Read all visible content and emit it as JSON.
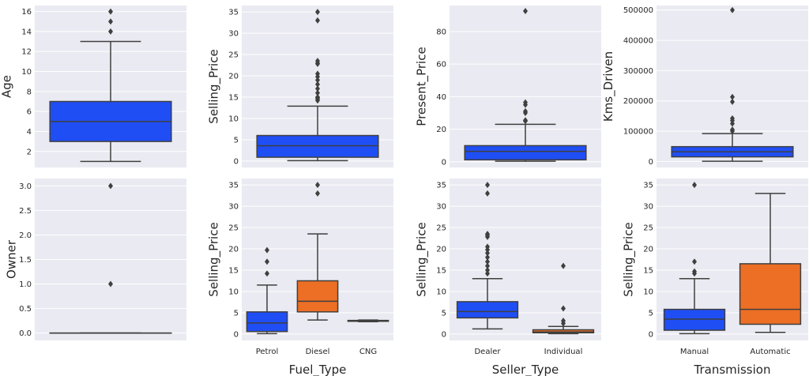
{
  "colors": {
    "panel_bg": "#eaeaf2",
    "grid": "#ffffff",
    "line": "#3f3f3f",
    "blue": "#1f4ef5",
    "orange": "#ec6f25"
  },
  "chart_data": [
    {
      "type": "box",
      "ylabel": "Age",
      "xlabel": "",
      "categories": [],
      "yticks": [
        2,
        4,
        6,
        8,
        10,
        12,
        14,
        16
      ],
      "ylim": [
        0.4,
        16.6
      ],
      "boxes": [
        {
          "color": "blue",
          "whislo": 1,
          "q1": 3,
          "med": 5,
          "q3": 7,
          "whishi": 13,
          "fliers": [
            14,
            15,
            16
          ]
        }
      ]
    },
    {
      "type": "box",
      "ylabel": "Selling_Price",
      "xlabel": "",
      "categories": [],
      "yticks": [
        0,
        5,
        10,
        15,
        20,
        25,
        30,
        35
      ],
      "ylim": [
        -1.5,
        36.5
      ],
      "boxes": [
        {
          "color": "blue",
          "whislo": 0.1,
          "q1": 0.9,
          "med": 3.6,
          "q3": 6.0,
          "whishi": 12.9,
          "fliers": [
            14.2,
            14.6,
            14.9,
            15.0,
            16.0,
            17.0,
            18.0,
            19.0,
            19.8,
            20.5,
            22.8,
            23.0,
            23.5,
            33.0,
            35.0
          ]
        }
      ]
    },
    {
      "type": "box",
      "ylabel": "Present_Price",
      "xlabel": "",
      "categories": [],
      "yticks": [
        0,
        20,
        40,
        60,
        80
      ],
      "ylim": [
        -3.5,
        96
      ],
      "boxes": [
        {
          "color": "blue",
          "whislo": 0.3,
          "q1": 1.2,
          "med": 6.4,
          "q3": 9.9,
          "whishi": 23,
          "fliers": [
            25,
            25.5,
            30,
            31,
            35,
            36.5,
            92.6
          ]
        }
      ]
    },
    {
      "type": "box",
      "ylabel": "Kms_Driven",
      "xlabel": "",
      "categories": [],
      "yticks": [
        0,
        100000,
        200000,
        300000,
        400000,
        500000
      ],
      "ylim": [
        -20000,
        515000
      ],
      "boxes": [
        {
          "color": "blue",
          "whislo": 500,
          "q1": 15000,
          "med": 32000,
          "q3": 48700,
          "whishi": 92000,
          "fliers": [
            100000,
            105000,
            125000,
            135000,
            142000,
            197000,
            213000,
            500000
          ]
        }
      ]
    },
    {
      "type": "box",
      "ylabel": "Owner",
      "xlabel": "",
      "categories": [],
      "yticks": [
        0.0,
        0.5,
        1.0,
        1.5,
        2.0,
        2.5,
        3.0
      ],
      "ylim": [
        -0.15,
        3.15
      ],
      "tick_decimals": 1,
      "boxes": [
        {
          "color": "blue",
          "whislo": 0,
          "q1": 0,
          "med": 0,
          "q3": 0,
          "whishi": 0,
          "fliers": [
            1,
            3
          ]
        }
      ]
    },
    {
      "type": "box",
      "ylabel": "Selling_Price",
      "xlabel": "Fuel_Type",
      "categories": [
        "Petrol",
        "Diesel",
        "CNG"
      ],
      "yticks": [
        0,
        5,
        10,
        15,
        20,
        25,
        30,
        35
      ],
      "ylim": [
        -1.5,
        36.5
      ],
      "boxes": [
        {
          "color": "blue",
          "whislo": 0.1,
          "q1": 0.6,
          "med": 2.6,
          "q3": 5.2,
          "whishi": 11.5,
          "fliers": [
            14.2,
            17.0,
            19.7
          ]
        },
        {
          "color": "orange",
          "whislo": 3.3,
          "q1": 5.2,
          "med": 7.7,
          "q3": 12.5,
          "whishi": 23.5,
          "fliers": [
            33.0,
            35.0
          ]
        },
        {
          "color": "blue",
          "whislo": 2.9,
          "q1": 3.0,
          "med": 3.1,
          "q3": 3.2,
          "whishi": 3.3,
          "fliers": []
        }
      ]
    },
    {
      "type": "box",
      "ylabel": "Selling_Price",
      "xlabel": "Seller_Type",
      "categories": [
        "Dealer",
        "Individual"
      ],
      "yticks": [
        0,
        5,
        10,
        15,
        20,
        25,
        30,
        35
      ],
      "ylim": [
        -1.5,
        36.5
      ],
      "boxes": [
        {
          "color": "blue",
          "whislo": 1.2,
          "q1": 3.8,
          "med": 5.3,
          "q3": 7.6,
          "whishi": 13.0,
          "fliers": [
            14.2,
            15.0,
            16.0,
            17.0,
            18.0,
            19.0,
            19.8,
            20.5,
            22.8,
            23.2,
            23.5,
            33.0,
            35.0
          ]
        },
        {
          "color": "orange",
          "whislo": 0.1,
          "q1": 0.3,
          "med": 0.5,
          "q3": 1.0,
          "whishi": 1.8,
          "fliers": [
            2.5,
            3.1,
            6.0,
            16.0
          ]
        }
      ]
    },
    {
      "type": "box",
      "ylabel": "Selling_Price",
      "xlabel": "Transmission",
      "categories": [
        "Manual",
        "Automatic"
      ],
      "yticks": [
        0,
        5,
        10,
        15,
        20,
        25,
        30,
        35
      ],
      "ylim": [
        -1.5,
        36.5
      ],
      "boxes": [
        {
          "color": "blue",
          "whislo": 0.1,
          "q1": 0.9,
          "med": 3.5,
          "q3": 5.8,
          "whishi": 13.0,
          "fliers": [
            14.2,
            14.7,
            17.0,
            35.0
          ]
        },
        {
          "color": "orange",
          "whislo": 0.4,
          "q1": 2.3,
          "med": 5.8,
          "q3": 16.5,
          "whishi": 33.0,
          "fliers": []
        }
      ]
    }
  ]
}
